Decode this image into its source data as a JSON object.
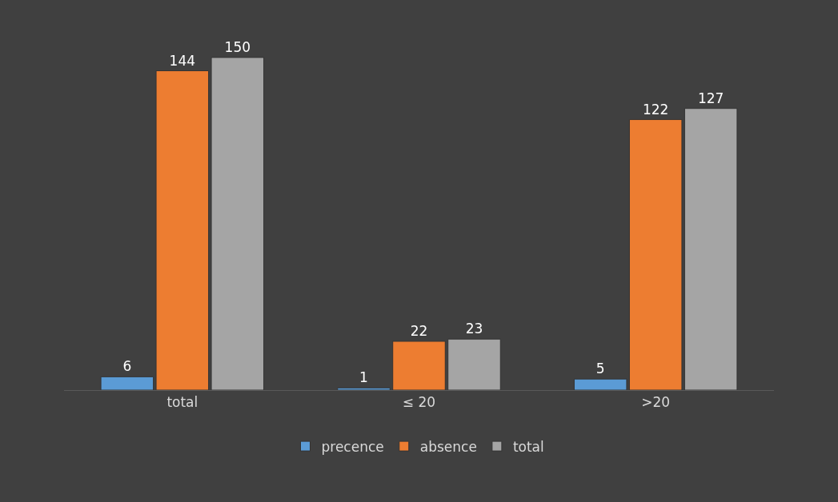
{
  "chart_data": {
    "type": "bar",
    "categories": [
      "total",
      "≤ 20",
      ">20"
    ],
    "series": [
      {
        "name": "precence",
        "color": "#5b9bd5",
        "values": [
          6,
          1,
          5
        ]
      },
      {
        "name": "absence",
        "color": "#ed7d31",
        "values": [
          144,
          22,
          122
        ]
      },
      {
        "name": "total",
        "color": "#a5a5a5",
        "values": [
          150,
          23,
          127
        ]
      }
    ],
    "data_labels": true,
    "legend": "bottom",
    "grid": false
  }
}
